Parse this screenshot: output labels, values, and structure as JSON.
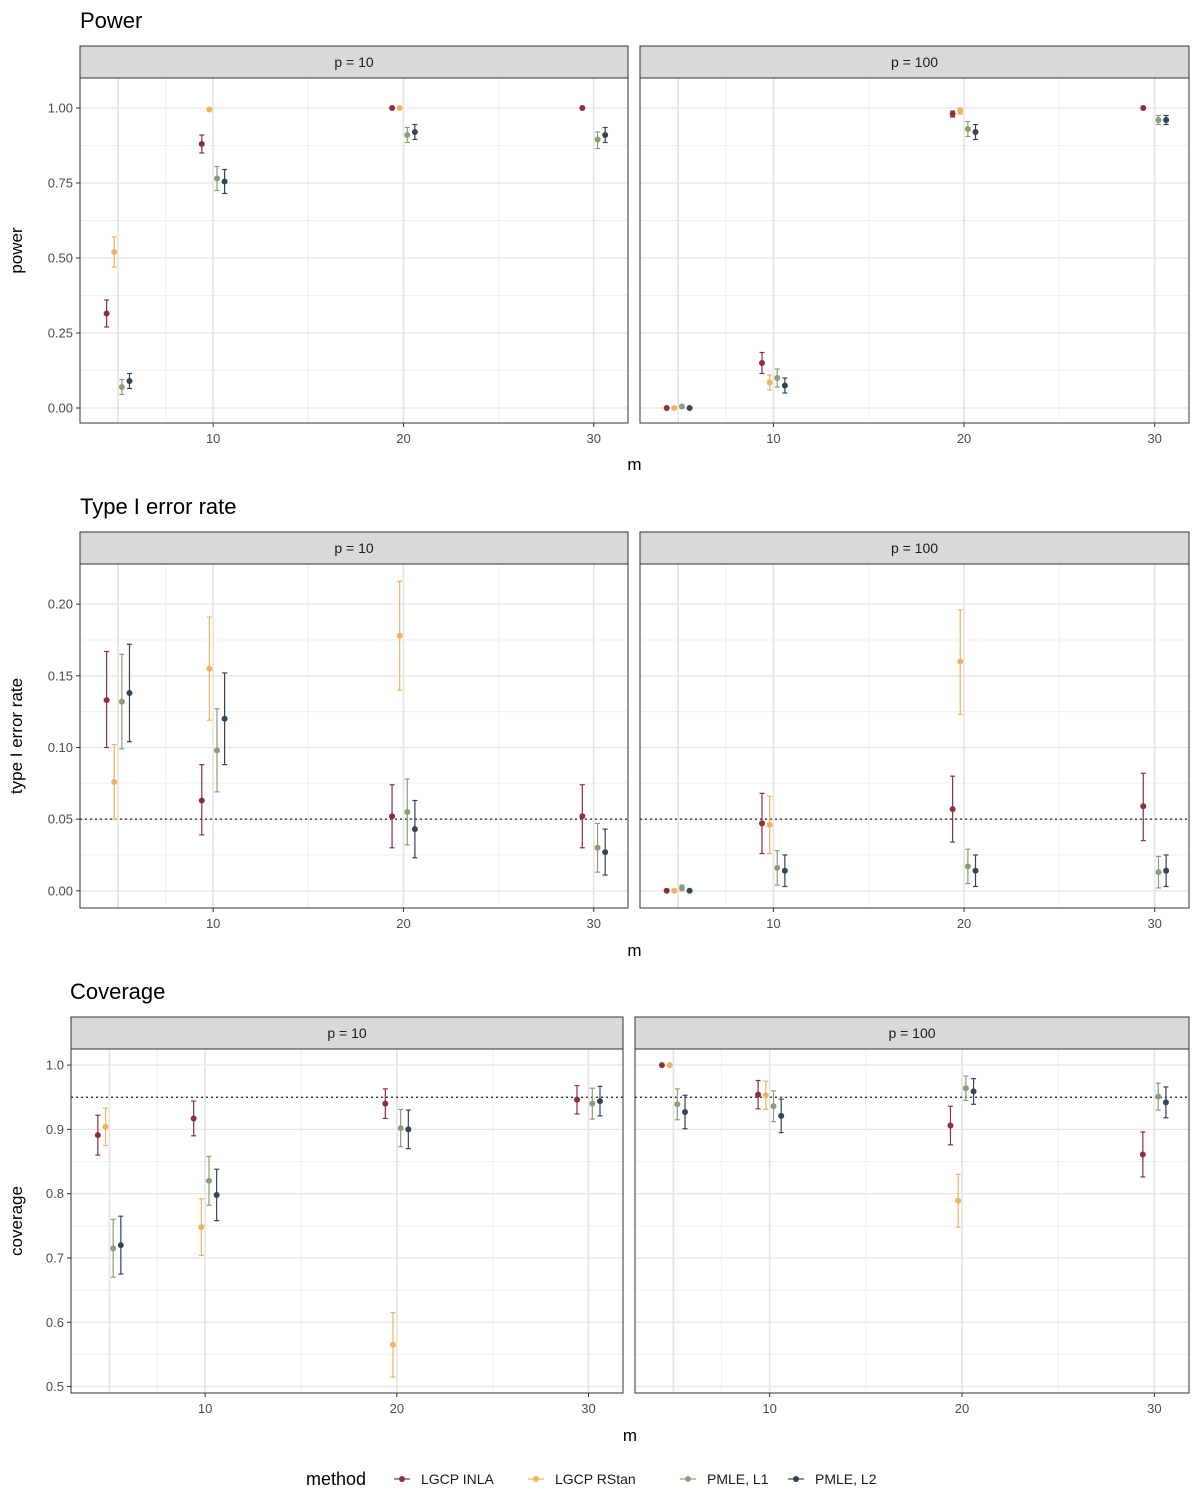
{
  "chart_data": {
    "type": "scatter",
    "legend": {
      "title": "method",
      "placement": "bottom",
      "entries": [
        {
          "name": "LGCP INLA",
          "color": "#8C2F3E"
        },
        {
          "name": "LGCP RStan",
          "color": "#F0B35E"
        },
        {
          "name": "PMLE, L1",
          "color": "#8C9E78"
        },
        {
          "name": "PMLE, L2",
          "color": "#344555"
        }
      ]
    },
    "x_categories": [
      5,
      10,
      20,
      30
    ],
    "x_ticks": [
      10,
      20,
      30
    ],
    "xlim": [
      3,
      31.8
    ],
    "panels": [
      {
        "title": "Power",
        "xlabel": "m",
        "ylabel": "power",
        "ylim": [
          -0.05,
          1.1
        ],
        "y_ticks": [
          "0.00",
          "0.25",
          "0.50",
          "0.75",
          "1.00"
        ],
        "reference_line": null,
        "facets": [
          {
            "strip": "p = 10",
            "series": [
              {
                "name": "LGCP INLA",
                "points": [
                  {
                    "x": 5,
                    "y": 0.315,
                    "lo": 0.27,
                    "hi": 0.36
                  },
                  {
                    "x": 10,
                    "y": 0.88,
                    "lo": 0.85,
                    "hi": 0.91
                  },
                  {
                    "x": 20,
                    "y": 1.0,
                    "lo": 1.0,
                    "hi": 1.0
                  },
                  {
                    "x": 30,
                    "y": 1.0,
                    "lo": 1.0,
                    "hi": 1.0
                  }
                ]
              },
              {
                "name": "LGCP RStan",
                "points": [
                  {
                    "x": 5,
                    "y": 0.52,
                    "lo": 0.47,
                    "hi": 0.57
                  },
                  {
                    "x": 10,
                    "y": 0.995,
                    "lo": 0.99,
                    "hi": 1.0
                  },
                  {
                    "x": 20,
                    "y": 1.0,
                    "lo": 1.0,
                    "hi": 1.0
                  }
                ]
              },
              {
                "name": "PMLE, L1",
                "points": [
                  {
                    "x": 5,
                    "y": 0.07,
                    "lo": 0.045,
                    "hi": 0.095
                  },
                  {
                    "x": 10,
                    "y": 0.765,
                    "lo": 0.725,
                    "hi": 0.805
                  },
                  {
                    "x": 20,
                    "y": 0.91,
                    "lo": 0.885,
                    "hi": 0.935
                  },
                  {
                    "x": 30,
                    "y": 0.895,
                    "lo": 0.865,
                    "hi": 0.92
                  }
                ]
              },
              {
                "name": "PMLE, L2",
                "points": [
                  {
                    "x": 5,
                    "y": 0.09,
                    "lo": 0.065,
                    "hi": 0.115
                  },
                  {
                    "x": 10,
                    "y": 0.755,
                    "lo": 0.715,
                    "hi": 0.795
                  },
                  {
                    "x": 20,
                    "y": 0.92,
                    "lo": 0.895,
                    "hi": 0.945
                  },
                  {
                    "x": 30,
                    "y": 0.91,
                    "lo": 0.885,
                    "hi": 0.935
                  }
                ]
              }
            ]
          },
          {
            "strip": "p = 100",
            "series": [
              {
                "name": "LGCP INLA",
                "points": [
                  {
                    "x": 5,
                    "y": 0.0,
                    "lo": 0.0,
                    "hi": 0.0
                  },
                  {
                    "x": 10,
                    "y": 0.15,
                    "lo": 0.115,
                    "hi": 0.185
                  },
                  {
                    "x": 20,
                    "y": 0.98,
                    "lo": 0.97,
                    "hi": 0.99
                  },
                  {
                    "x": 30,
                    "y": 1.0,
                    "lo": 1.0,
                    "hi": 1.0
                  }
                ]
              },
              {
                "name": "LGCP RStan",
                "points": [
                  {
                    "x": 5,
                    "y": 0.0,
                    "lo": 0.0,
                    "hi": 0.0
                  },
                  {
                    "x": 10,
                    "y": 0.085,
                    "lo": 0.06,
                    "hi": 0.11
                  },
                  {
                    "x": 20,
                    "y": 0.99,
                    "lo": 0.98,
                    "hi": 1.0
                  }
                ]
              },
              {
                "name": "PMLE, L1",
                "points": [
                  {
                    "x": 5,
                    "y": 0.005,
                    "lo": 0.0,
                    "hi": 0.01
                  },
                  {
                    "x": 10,
                    "y": 0.1,
                    "lo": 0.07,
                    "hi": 0.13
                  },
                  {
                    "x": 20,
                    "y": 0.93,
                    "lo": 0.905,
                    "hi": 0.955
                  },
                  {
                    "x": 30,
                    "y": 0.96,
                    "lo": 0.945,
                    "hi": 0.975
                  }
                ]
              },
              {
                "name": "PMLE, L2",
                "points": [
                  {
                    "x": 5,
                    "y": 0.0,
                    "lo": 0.0,
                    "hi": 0.0
                  },
                  {
                    "x": 10,
                    "y": 0.075,
                    "lo": 0.05,
                    "hi": 0.1
                  },
                  {
                    "x": 20,
                    "y": 0.92,
                    "lo": 0.895,
                    "hi": 0.945
                  },
                  {
                    "x": 30,
                    "y": 0.96,
                    "lo": 0.945,
                    "hi": 0.975
                  }
                ]
              }
            ]
          }
        ]
      },
      {
        "title": "Type I error rate",
        "xlabel": "m",
        "ylabel": "type I error rate",
        "ylim": [
          -0.012,
          0.228
        ],
        "y_ticks": [
          "0.00",
          "0.05",
          "0.10",
          "0.15",
          "0.20"
        ],
        "reference_line": 0.05,
        "facets": [
          {
            "strip": "p = 10",
            "series": [
              {
                "name": "LGCP INLA",
                "points": [
                  {
                    "x": 5,
                    "y": 0.133,
                    "lo": 0.1,
                    "hi": 0.167
                  },
                  {
                    "x": 10,
                    "y": 0.063,
                    "lo": 0.039,
                    "hi": 0.088
                  },
                  {
                    "x": 20,
                    "y": 0.052,
                    "lo": 0.03,
                    "hi": 0.074
                  },
                  {
                    "x": 30,
                    "y": 0.052,
                    "lo": 0.03,
                    "hi": 0.074
                  }
                ]
              },
              {
                "name": "LGCP RStan",
                "points": [
                  {
                    "x": 5,
                    "y": 0.076,
                    "lo": 0.05,
                    "hi": 0.102
                  },
                  {
                    "x": 10,
                    "y": 0.155,
                    "lo": 0.119,
                    "hi": 0.191
                  },
                  {
                    "x": 20,
                    "y": 0.178,
                    "lo": 0.14,
                    "hi": 0.216
                  }
                ]
              },
              {
                "name": "PMLE, L1",
                "points": [
                  {
                    "x": 5,
                    "y": 0.132,
                    "lo": 0.099,
                    "hi": 0.165
                  },
                  {
                    "x": 10,
                    "y": 0.098,
                    "lo": 0.069,
                    "hi": 0.127
                  },
                  {
                    "x": 20,
                    "y": 0.055,
                    "lo": 0.032,
                    "hi": 0.078
                  },
                  {
                    "x": 30,
                    "y": 0.03,
                    "lo": 0.013,
                    "hi": 0.047
                  }
                ]
              },
              {
                "name": "PMLE, L2",
                "points": [
                  {
                    "x": 5,
                    "y": 0.138,
                    "lo": 0.104,
                    "hi": 0.172
                  },
                  {
                    "x": 10,
                    "y": 0.12,
                    "lo": 0.088,
                    "hi": 0.152
                  },
                  {
                    "x": 20,
                    "y": 0.043,
                    "lo": 0.023,
                    "hi": 0.063
                  },
                  {
                    "x": 30,
                    "y": 0.027,
                    "lo": 0.011,
                    "hi": 0.043
                  }
                ]
              }
            ]
          },
          {
            "strip": "p = 100",
            "series": [
              {
                "name": "LGCP INLA",
                "points": [
                  {
                    "x": 5,
                    "y": 0.0,
                    "lo": 0.0,
                    "hi": 0.0
                  },
                  {
                    "x": 10,
                    "y": 0.047,
                    "lo": 0.026,
                    "hi": 0.068
                  },
                  {
                    "x": 20,
                    "y": 0.057,
                    "lo": 0.034,
                    "hi": 0.08
                  },
                  {
                    "x": 30,
                    "y": 0.059,
                    "lo": 0.035,
                    "hi": 0.082
                  }
                ]
              },
              {
                "name": "LGCP RStan",
                "points": [
                  {
                    "x": 5,
                    "y": 0.0,
                    "lo": 0.0,
                    "hi": 0.0
                  },
                  {
                    "x": 10,
                    "y": 0.046,
                    "lo": 0.026,
                    "hi": 0.066
                  },
                  {
                    "x": 20,
                    "y": 0.16,
                    "lo": 0.123,
                    "hi": 0.196
                  }
                ]
              },
              {
                "name": "PMLE, L1",
                "points": [
                  {
                    "x": 5,
                    "y": 0.002,
                    "lo": 0.0,
                    "hi": 0.004
                  },
                  {
                    "x": 10,
                    "y": 0.016,
                    "lo": 0.004,
                    "hi": 0.028
                  },
                  {
                    "x": 20,
                    "y": 0.017,
                    "lo": 0.005,
                    "hi": 0.029
                  },
                  {
                    "x": 30,
                    "y": 0.013,
                    "lo": 0.002,
                    "hi": 0.024
                  }
                ]
              },
              {
                "name": "PMLE, L2",
                "points": [
                  {
                    "x": 5,
                    "y": 0.0,
                    "lo": 0.0,
                    "hi": 0.0
                  },
                  {
                    "x": 10,
                    "y": 0.014,
                    "lo": 0.003,
                    "hi": 0.025
                  },
                  {
                    "x": 20,
                    "y": 0.014,
                    "lo": 0.003,
                    "hi": 0.025
                  },
                  {
                    "x": 30,
                    "y": 0.014,
                    "lo": 0.003,
                    "hi": 0.025
                  }
                ]
              }
            ]
          }
        ]
      },
      {
        "title": "Coverage",
        "xlabel": "m",
        "ylabel": "coverage",
        "ylim": [
          0.49,
          1.025
        ],
        "y_ticks": [
          "0.5",
          "0.6",
          "0.7",
          "0.8",
          "0.9",
          "1.0"
        ],
        "reference_line": 0.95,
        "facets": [
          {
            "strip": "p = 10",
            "series": [
              {
                "name": "LGCP INLA",
                "points": [
                  {
                    "x": 5,
                    "y": 0.891,
                    "lo": 0.86,
                    "hi": 0.922
                  },
                  {
                    "x": 10,
                    "y": 0.917,
                    "lo": 0.89,
                    "hi": 0.944
                  },
                  {
                    "x": 20,
                    "y": 0.94,
                    "lo": 0.917,
                    "hi": 0.963
                  },
                  {
                    "x": 30,
                    "y": 0.946,
                    "lo": 0.924,
                    "hi": 0.968
                  }
                ]
              },
              {
                "name": "LGCP RStan",
                "points": [
                  {
                    "x": 5,
                    "y": 0.904,
                    "lo": 0.875,
                    "hi": 0.933
                  },
                  {
                    "x": 10,
                    "y": 0.748,
                    "lo": 0.704,
                    "hi": 0.792
                  },
                  {
                    "x": 20,
                    "y": 0.565,
                    "lo": 0.515,
                    "hi": 0.615
                  }
                ]
              },
              {
                "name": "PMLE, L1",
                "points": [
                  {
                    "x": 5,
                    "y": 0.715,
                    "lo": 0.67,
                    "hi": 0.76
                  },
                  {
                    "x": 10,
                    "y": 0.82,
                    "lo": 0.782,
                    "hi": 0.858
                  },
                  {
                    "x": 20,
                    "y": 0.902,
                    "lo": 0.873,
                    "hi": 0.931
                  },
                  {
                    "x": 30,
                    "y": 0.94,
                    "lo": 0.916,
                    "hi": 0.964
                  }
                ]
              },
              {
                "name": "PMLE, L2",
                "points": [
                  {
                    "x": 5,
                    "y": 0.72,
                    "lo": 0.675,
                    "hi": 0.765
                  },
                  {
                    "x": 10,
                    "y": 0.798,
                    "lo": 0.758,
                    "hi": 0.838
                  },
                  {
                    "x": 20,
                    "y": 0.9,
                    "lo": 0.87,
                    "hi": 0.93
                  },
                  {
                    "x": 30,
                    "y": 0.944,
                    "lo": 0.921,
                    "hi": 0.967
                  }
                ]
              }
            ]
          },
          {
            "strip": "p = 100",
            "series": [
              {
                "name": "LGCP INLA",
                "points": [
                  {
                    "x": 5,
                    "y": 1.0,
                    "lo": 1.0,
                    "hi": 1.0
                  },
                  {
                    "x": 10,
                    "y": 0.954,
                    "lo": 0.932,
                    "hi": 0.976
                  },
                  {
                    "x": 20,
                    "y": 0.906,
                    "lo": 0.876,
                    "hi": 0.936
                  },
                  {
                    "x": 30,
                    "y": 0.861,
                    "lo": 0.826,
                    "hi": 0.896
                  }
                ]
              },
              {
                "name": "LGCP RStan",
                "points": [
                  {
                    "x": 5,
                    "y": 1.0,
                    "lo": 1.0,
                    "hi": 1.0
                  },
                  {
                    "x": 10,
                    "y": 0.953,
                    "lo": 0.931,
                    "hi": 0.975
                  },
                  {
                    "x": 20,
                    "y": 0.789,
                    "lo": 0.748,
                    "hi": 0.83
                  }
                ]
              },
              {
                "name": "PMLE, L1",
                "points": [
                  {
                    "x": 5,
                    "y": 0.939,
                    "lo": 0.915,
                    "hi": 0.963
                  },
                  {
                    "x": 10,
                    "y": 0.936,
                    "lo": 0.912,
                    "hi": 0.96
                  },
                  {
                    "x": 20,
                    "y": 0.964,
                    "lo": 0.945,
                    "hi": 0.983
                  },
                  {
                    "x": 30,
                    "y": 0.951,
                    "lo": 0.93,
                    "hi": 0.972
                  }
                ]
              },
              {
                "name": "PMLE, L2",
                "points": [
                  {
                    "x": 5,
                    "y": 0.927,
                    "lo": 0.901,
                    "hi": 0.953
                  },
                  {
                    "x": 10,
                    "y": 0.921,
                    "lo": 0.895,
                    "hi": 0.947
                  },
                  {
                    "x": 20,
                    "y": 0.959,
                    "lo": 0.939,
                    "hi": 0.979
                  },
                  {
                    "x": 30,
                    "y": 0.942,
                    "lo": 0.918,
                    "hi": 0.966
                  }
                ]
              }
            ]
          }
        ]
      }
    ]
  }
}
